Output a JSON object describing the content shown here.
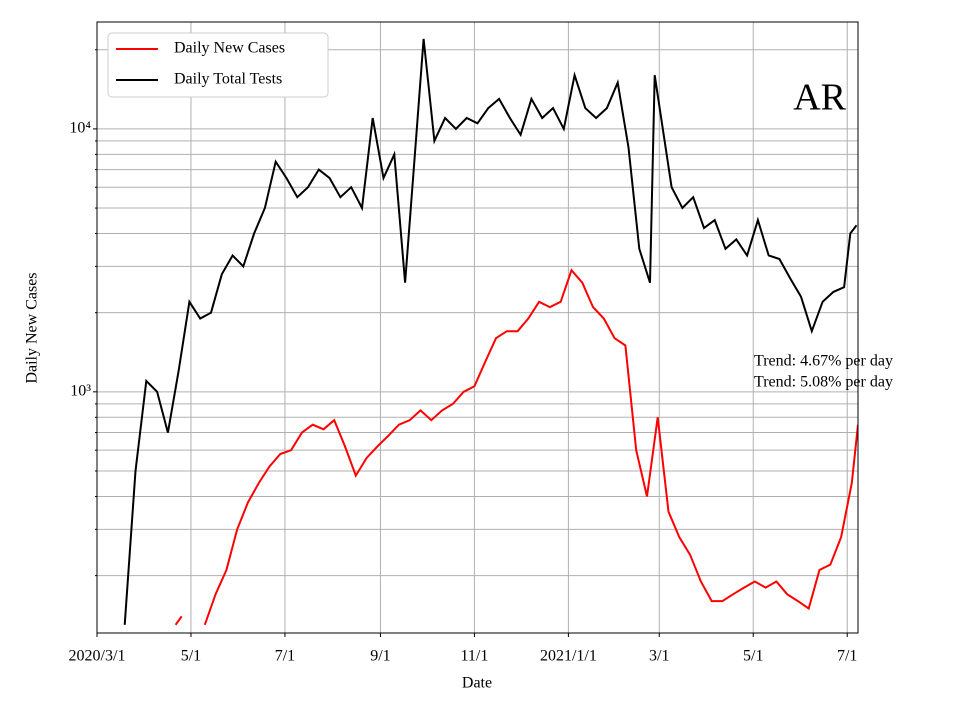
{
  "chart_data": {
    "type": "line",
    "xlabel": "Date",
    "ylabel": "Daily New Cases",
    "annotations": [
      "AR",
      "Trend: 4.67% per day",
      "Trend: 5.08% per day"
    ],
    "log_y": true,
    "grid": true,
    "legend": "upper left",
    "xlim": [
      "2020/3/1",
      "2021/7/8"
    ],
    "xticks": [
      {
        "value": "2020/3/1",
        "label": "2020/3/1"
      },
      {
        "value": "2020/5/1",
        "label": "5/1"
      },
      {
        "value": "2020/7/1",
        "label": "7/1"
      },
      {
        "value": "2020/9/1",
        "label": "9/1"
      },
      {
        "value": "2020/11/1",
        "label": "11/1"
      },
      {
        "value": "2021/1/1",
        "label": "2021/1/1"
      },
      {
        "value": "2021/3/1",
        "label": "3/1"
      },
      {
        "value": "2021/5/1",
        "label": "5/1"
      },
      {
        "value": "2021/7/1",
        "label": "7/1"
      }
    ],
    "ylim": [
      121,
      25500
    ],
    "yticks": [
      {
        "value": 1000,
        "label": "10³"
      },
      {
        "value": 10000,
        "label": "10⁴"
      }
    ],
    "yticks_minor": [
      200,
      300,
      400,
      500,
      600,
      700,
      800,
      900,
      2000,
      3000,
      4000,
      5000,
      6000,
      7000,
      8000,
      9000,
      20000
    ],
    "series": [
      {
        "name": "Daily New Cases",
        "color": "#ff0000",
        "x": [
          "2020/4/21",
          "2020/4/25",
          "2020/4/30",
          "2020/5/10",
          "2020/5/17",
          "2020/5/24",
          "2020/5/31",
          "2020/6/7",
          "2020/6/14",
          "2020/6/21",
          "2020/6/28",
          "2020/7/5",
          "2020/7/12",
          "2020/7/19",
          "2020/7/26",
          "2020/8/2",
          "2020/8/9",
          "2020/8/16",
          "2020/8/23",
          "2020/8/30",
          "2020/9/6",
          "2020/9/13",
          "2020/9/20",
          "2020/9/27",
          "2020/10/4",
          "2020/10/11",
          "2020/10/18",
          "2020/10/25",
          "2020/11/1",
          "2020/11/8",
          "2020/11/15",
          "2020/11/22",
          "2020/11/29",
          "2020/12/6",
          "2020/12/13",
          "2020/12/20",
          "2020/12/27",
          "2021/1/3",
          "2021/1/10",
          "2021/1/17",
          "2021/1/24",
          "2021/1/31",
          "2021/2/7",
          "2021/2/14",
          "2021/2/21",
          "2021/2/28",
          "2021/3/7",
          "2021/3/14",
          "2021/3/21",
          "2021/3/28",
          "2021/4/4",
          "2021/4/11",
          "2021/4/18",
          "2021/4/25",
          "2021/5/2",
          "2021/5/9",
          "2021/5/16",
          "2021/5/23",
          "2021/5/30",
          "2021/6/6",
          "2021/6/13",
          "2021/6/20",
          "2021/6/27",
          "2021/7/4",
          "2021/7/8"
        ],
        "values": [
          130,
          140,
          null,
          130,
          170,
          210,
          300,
          380,
          450,
          520,
          580,
          600,
          700,
          750,
          720,
          780,
          620,
          480,
          560,
          620,
          680,
          750,
          780,
          850,
          780,
          850,
          900,
          1000,
          1050,
          1300,
          1600,
          1700,
          1700,
          1900,
          2200,
          2100,
          2200,
          2900,
          2600,
          2100,
          1900,
          1600,
          1500,
          600,
          400,
          800,
          350,
          280,
          240,
          190,
          160,
          160,
          170,
          180,
          190,
          180,
          190,
          170,
          160,
          150,
          210,
          220,
          280,
          450,
          750
        ]
      },
      {
        "name": "Daily Total Tests",
        "color": "#000000",
        "x": [
          "2020/3/19",
          "2020/3/26",
          "2020/4/2",
          "2020/4/9",
          "2020/4/16",
          "2020/4/23",
          "2020/4/30",
          "2020/5/7",
          "2020/5/14",
          "2020/5/21",
          "2020/5/28",
          "2020/6/4",
          "2020/6/11",
          "2020/6/18",
          "2020/6/25",
          "2020/7/2",
          "2020/7/9",
          "2020/7/16",
          "2020/7/23",
          "2020/7/30",
          "2020/8/6",
          "2020/8/13",
          "2020/8/20",
          "2020/8/27",
          "2020/9/3",
          "2020/9/10",
          "2020/9/17",
          "2020/9/24",
          "2020/9/29",
          "2020/10/6",
          "2020/10/13",
          "2020/10/20",
          "2020/10/27",
          "2020/11/3",
          "2020/11/10",
          "2020/11/17",
          "2020/11/24",
          "2020/12/1",
          "2020/12/8",
          "2020/12/15",
          "2020/12/22",
          "2020/12/29",
          "2021/1/5",
          "2021/1/12",
          "2021/1/19",
          "2021/1/26",
          "2021/2/2",
          "2021/2/9",
          "2021/2/16",
          "2021/2/23",
          "2021/2/26",
          "2021/3/9",
          "2021/3/16",
          "2021/3/23",
          "2021/3/30",
          "2021/4/6",
          "2021/4/13",
          "2021/4/20",
          "2021/4/27",
          "2021/5/4",
          "2021/5/11",
          "2021/5/18",
          "2021/5/25",
          "2021/6/1",
          "2021/6/8",
          "2021/6/15",
          "2021/6/22",
          "2021/6/29",
          "2021/7/3",
          "2021/7/7"
        ],
        "values": [
          130,
          500,
          1100,
          1000,
          700,
          1200,
          2200,
          1900,
          2000,
          2800,
          3300,
          3000,
          4000,
          5000,
          7500,
          6500,
          5500,
          6000,
          7000,
          6500,
          5500,
          6000,
          5000,
          11000,
          6500,
          8000,
          2600,
          9000,
          22000,
          9000,
          11000,
          10000,
          11000,
          10500,
          12000,
          13000,
          11000,
          9500,
          13000,
          11000,
          12000,
          10000,
          16000,
          12000,
          11000,
          12000,
          15000,
          8500,
          3500,
          2600,
          16000,
          6000,
          5000,
          5500,
          4200,
          4500,
          3500,
          3800,
          3300,
          4500,
          3300,
          3200,
          2700,
          2300,
          1700,
          2200,
          2400,
          2500,
          4000,
          4300
        ]
      }
    ]
  }
}
